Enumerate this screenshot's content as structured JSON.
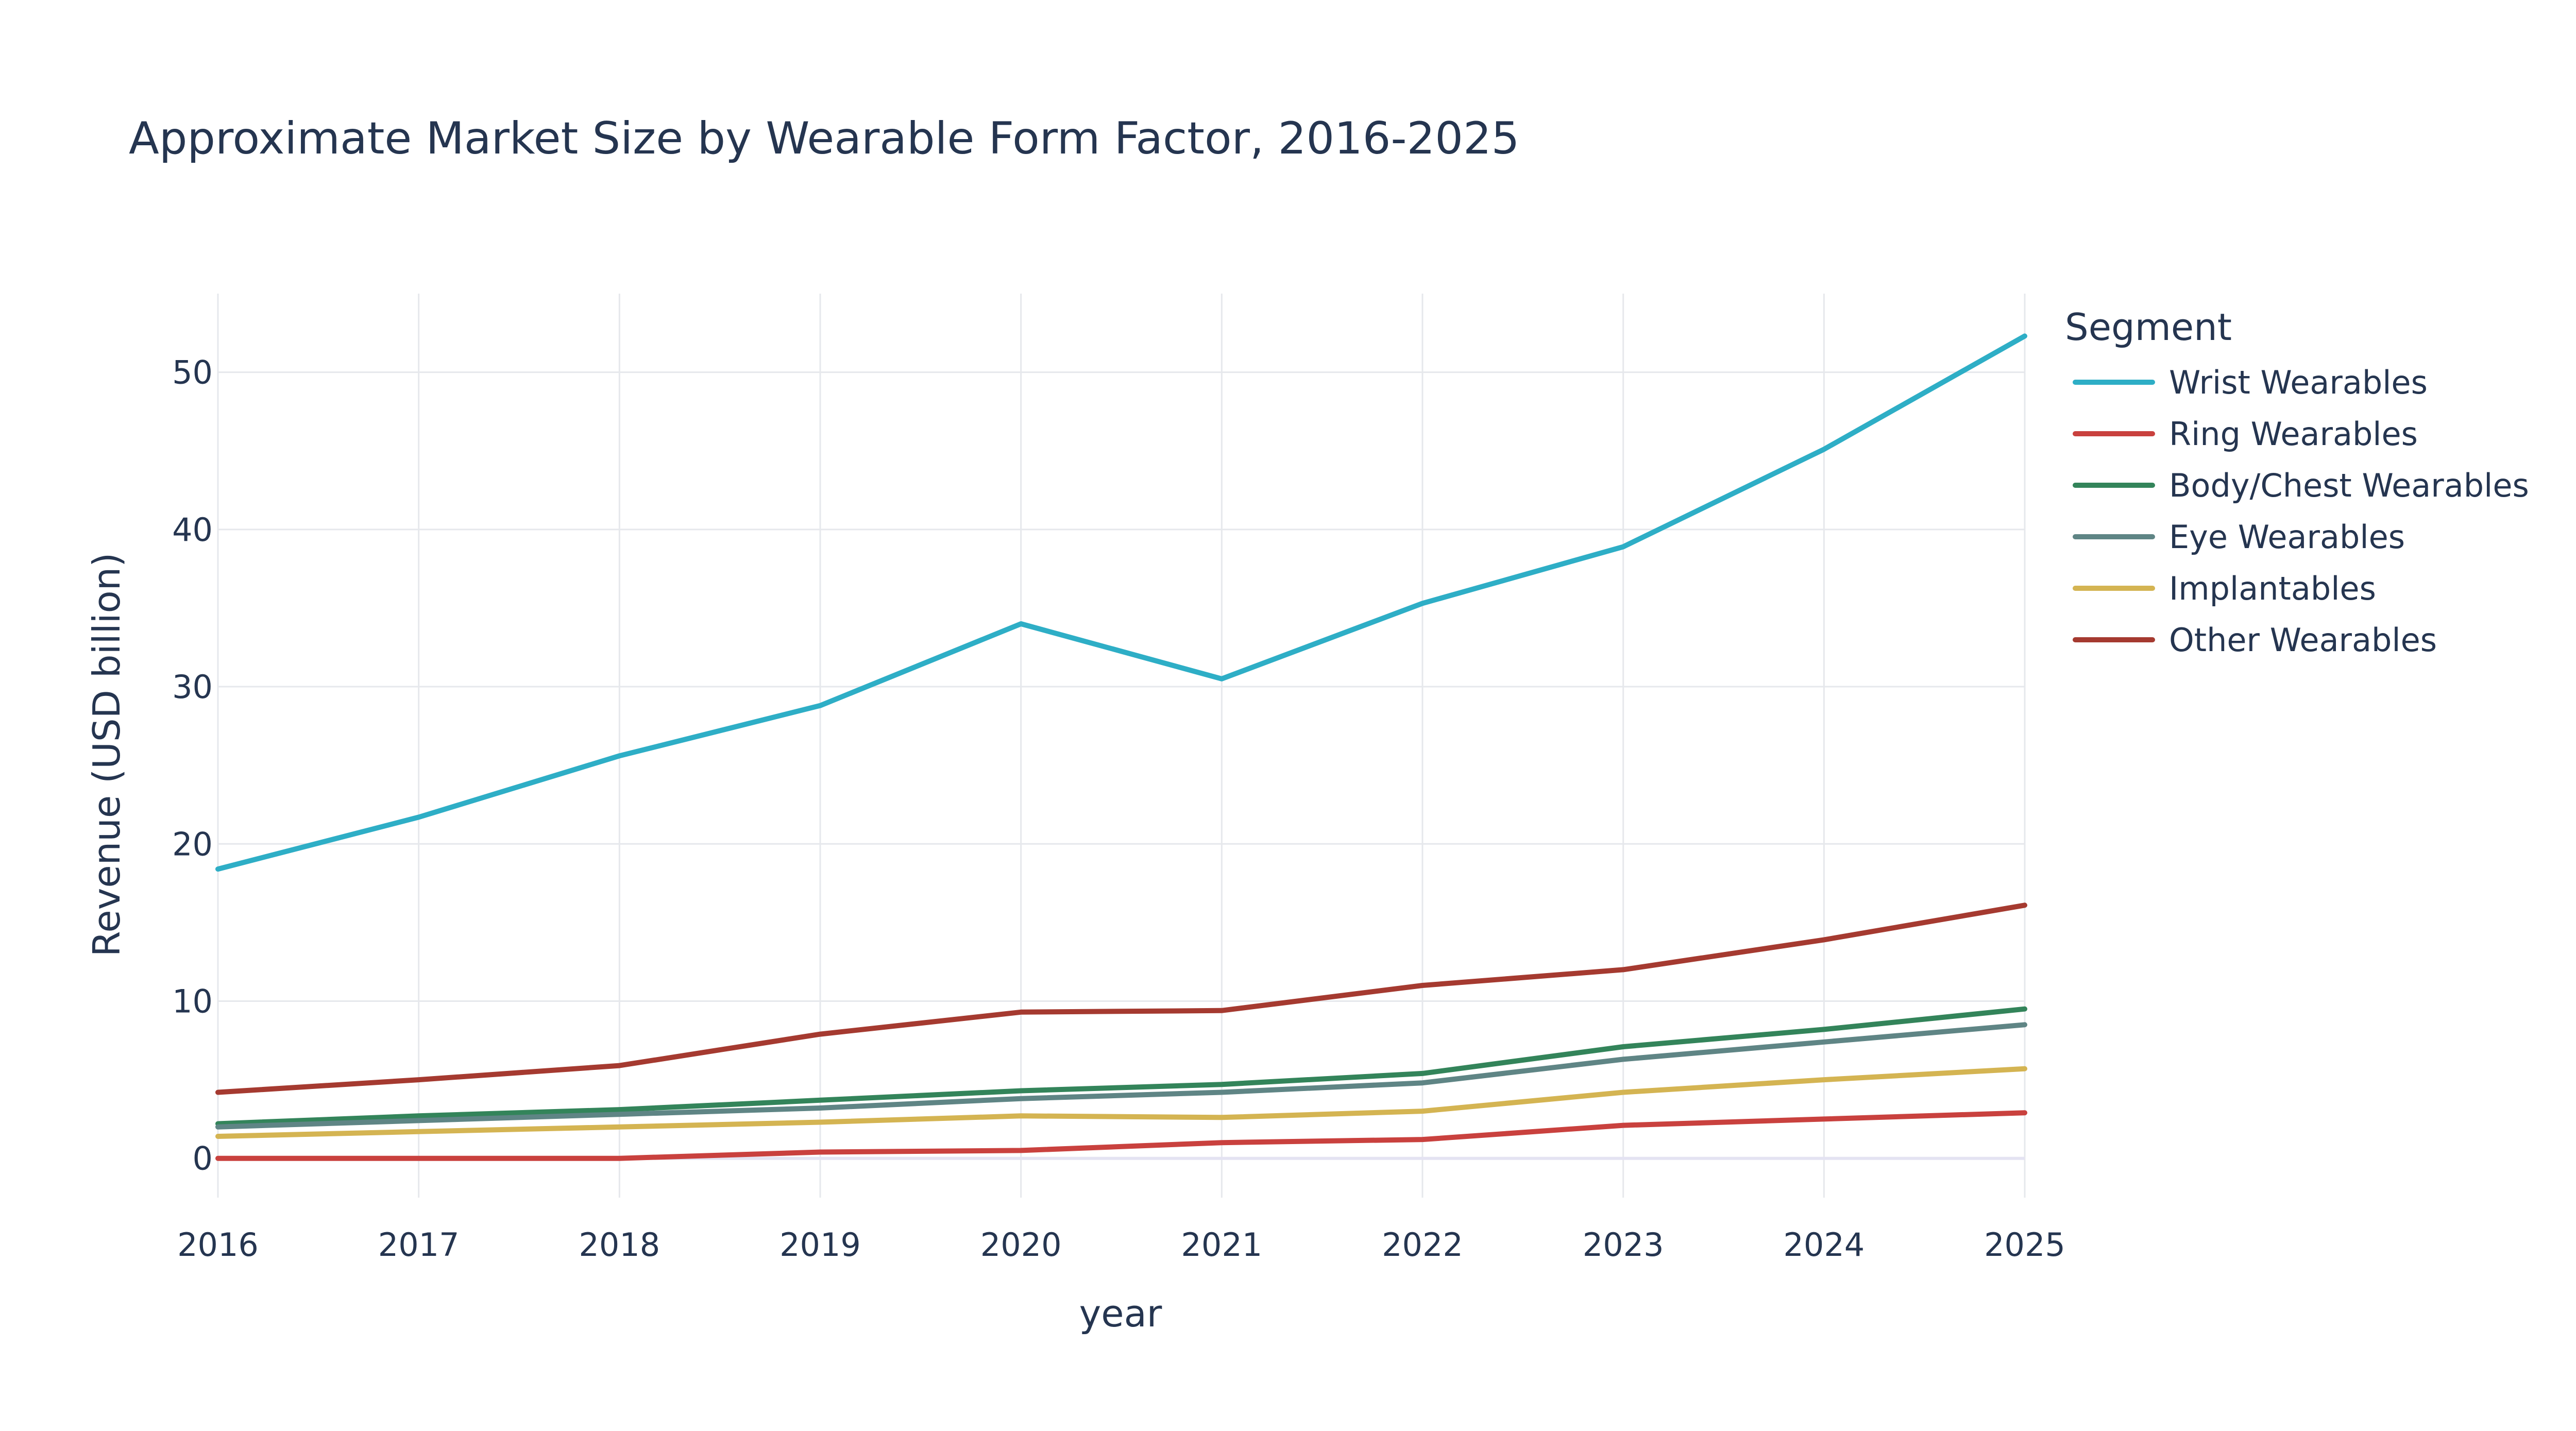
{
  "chart_data": {
    "type": "line",
    "title": "Approximate Market Size by Wearable Form Factor, 2016-2025",
    "xlabel": "year",
    "ylabel": "Revenue (USD billion)",
    "x": [
      2016,
      2017,
      2018,
      2019,
      2020,
      2021,
      2022,
      2023,
      2024,
      2025
    ],
    "x_ticks": [
      "2016",
      "2017",
      "2018",
      "2019",
      "2020",
      "2021",
      "2022",
      "2023",
      "2024",
      "2025"
    ],
    "xlim": [
      2016,
      2025
    ],
    "y_ticks": [
      0,
      10,
      20,
      30,
      40,
      50
    ],
    "ylim": [
      -2.5,
      55
    ],
    "grid": true,
    "legend": {
      "title": "Segment",
      "placement": "right"
    },
    "series": [
      {
        "name": "Wrist Wearables",
        "color": "#2eaec6",
        "values": [
          18.4,
          21.7,
          25.6,
          28.8,
          34.0,
          30.5,
          35.3,
          38.9,
          45.1,
          52.3
        ]
      },
      {
        "name": "Ring Wearables",
        "color": "#c9413e",
        "values": [
          0.0,
          0.0,
          0.0,
          0.4,
          0.5,
          1.0,
          1.2,
          2.1,
          2.5,
          2.9
        ]
      },
      {
        "name": "Body/Chest Wearables",
        "color": "#33845a",
        "values": [
          2.2,
          2.7,
          3.1,
          3.7,
          4.3,
          4.7,
          5.4,
          7.1,
          8.2,
          9.5
        ]
      },
      {
        "name": "Eye Wearables",
        "color": "#5f8585",
        "values": [
          2.0,
          2.4,
          2.8,
          3.2,
          3.8,
          4.2,
          4.8,
          6.3,
          7.4,
          8.5
        ]
      },
      {
        "name": "Implantables",
        "color": "#d4b452",
        "values": [
          1.4,
          1.7,
          2.0,
          2.3,
          2.7,
          2.6,
          3.0,
          4.2,
          5.0,
          5.7
        ]
      },
      {
        "name": "Other Wearables",
        "color": "#a53a30",
        "values": [
          4.2,
          5.0,
          5.9,
          7.9,
          9.3,
          9.4,
          11.0,
          12.0,
          13.9,
          16.1
        ]
      }
    ]
  }
}
